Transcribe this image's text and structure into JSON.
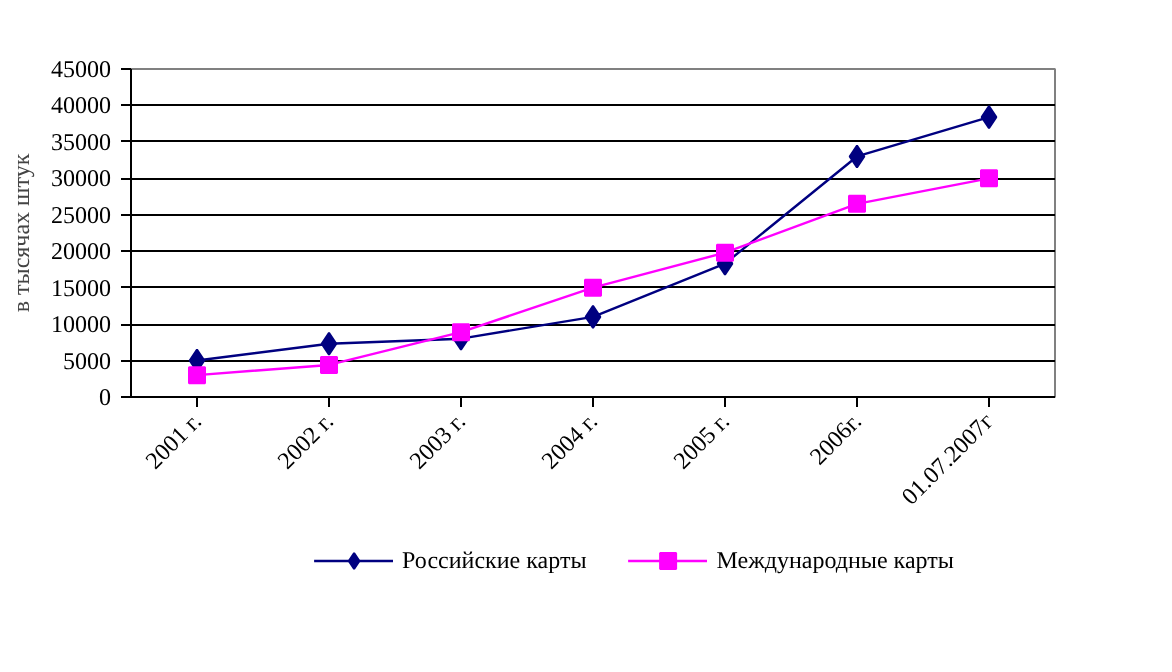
{
  "chart_data": {
    "type": "line",
    "ylabel": "в тысячах штук",
    "categories": [
      "2001 г.",
      "2002 г.",
      "2003 г.",
      "2004 г.",
      "2005 г.",
      "2006г.",
      "01.07.2007г"
    ],
    "series": [
      {
        "name": "Российские карты",
        "color": "#000080",
        "marker": "diamond",
        "values": [
          5000,
          7300,
          8000,
          11000,
          18300,
          33000,
          38400
        ]
      },
      {
        "name": "Международные карты",
        "color": "#ff00ff",
        "marker": "square",
        "values": [
          3000,
          4400,
          8900,
          15000,
          19800,
          26500,
          30000
        ]
      }
    ],
    "ylim": [
      0,
      45000
    ],
    "yticks": [
      0,
      5000,
      10000,
      15000,
      20000,
      25000,
      30000,
      35000,
      40000,
      45000
    ],
    "grid": "y",
    "legend": "bottom",
    "line_style": "solid"
  }
}
